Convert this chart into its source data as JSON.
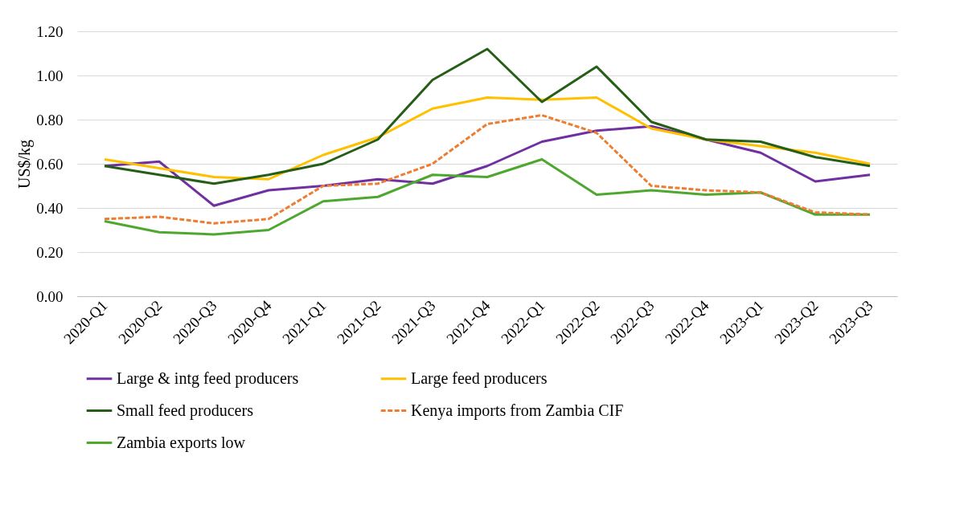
{
  "chart_data": {
    "type": "line",
    "ylabel": "US$/kg",
    "categories": [
      "2020-Q1",
      "2020-Q2",
      "2020-Q3",
      "2020-Q4",
      "2021-Q1",
      "2021-Q2",
      "2021-Q3",
      "2021-Q4",
      "2022-Q1",
      "2022-Q2",
      "2022-Q3",
      "2022-Q4",
      "2023-Q1",
      "2023-Q2",
      "2023-Q3"
    ],
    "series": [
      {
        "name": "Large & intg feed producers",
        "color": "#7030a0",
        "line_style": "solid",
        "values": [
          0.59,
          0.61,
          0.41,
          0.48,
          0.5,
          0.53,
          0.51,
          0.59,
          0.7,
          0.75,
          0.77,
          0.71,
          0.65,
          0.52,
          0.55
        ]
      },
      {
        "name": "Large feed producers",
        "color": "#ffc000",
        "line_style": "solid",
        "values": [
          0.62,
          0.58,
          0.54,
          0.53,
          0.64,
          0.72,
          0.85,
          0.9,
          0.89,
          0.9,
          0.76,
          0.71,
          0.68,
          0.65,
          0.6
        ]
      },
      {
        "name": "Small feed producers",
        "color": "#255e16",
        "line_style": "solid",
        "values": [
          0.59,
          0.55,
          0.51,
          0.55,
          0.6,
          0.71,
          0.98,
          1.12,
          0.88,
          1.04,
          0.79,
          0.71,
          0.7,
          0.63,
          0.59
        ]
      },
      {
        "name": "Kenya imports from Zambia CIF",
        "color": "#ed7d31",
        "line_style": "dashed",
        "values": [
          0.35,
          0.36,
          0.33,
          0.35,
          0.5,
          0.51,
          0.6,
          0.78,
          0.82,
          0.74,
          0.5,
          0.48,
          0.47,
          0.38,
          0.37
        ]
      },
      {
        "name": "Zambia exports low",
        "color": "#4ea72e",
        "line_style": "solid",
        "values": [
          0.34,
          0.29,
          0.28,
          0.3,
          0.43,
          0.45,
          0.55,
          0.54,
          0.62,
          0.46,
          0.48,
          0.46,
          0.47,
          0.37,
          0.37
        ]
      }
    ],
    "ylim": [
      0,
      1.2
    ],
    "yticks": [
      {
        "value": 0,
        "label": "0.00"
      },
      {
        "value": 0.2,
        "label": "0.20"
      },
      {
        "value": 0.4,
        "label": "0.40"
      },
      {
        "value": 0.6,
        "label": "0.60"
      },
      {
        "value": 0.8,
        "label": "0.80"
      },
      {
        "value": 1.0,
        "label": "1.00"
      },
      {
        "value": 1.2,
        "label": "1.20"
      }
    ],
    "grid": "y",
    "legend": "bottom",
    "marker": "none"
  }
}
